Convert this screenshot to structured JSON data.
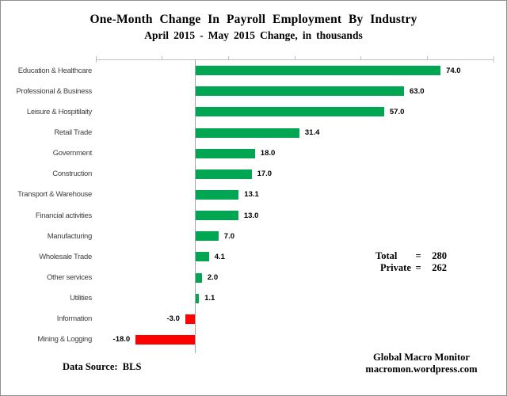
{
  "title": "One-Month Change In Payroll Employment By Industry",
  "subtitle": "April 2015 - May 2015  Change, in thousands",
  "chart_data": {
    "type": "bar",
    "orientation": "horizontal",
    "title": "One-Month Change In Payroll Employment By Industry",
    "subtitle": "April 2015 - May 2015  Change, in thousands",
    "categories": [
      "Education & Healthcare",
      "Professional & Business",
      "Leisure & Hospitilaity",
      "Retail Trade",
      "Government",
      "Construction",
      "Transport & Warehouse",
      "Financial activities",
      "Manufacturing",
      "Wholesale Trade",
      "Other services",
      "Utilities",
      "Information",
      "Mining & Logging"
    ],
    "values": [
      74.0,
      63.0,
      57.0,
      31.4,
      18.0,
      17.0,
      13.1,
      13.0,
      7.0,
      4.1,
      2.0,
      1.1,
      -3.0,
      -18.0
    ],
    "xlabel": "",
    "ylabel": "",
    "xlim": [
      -30,
      90
    ],
    "tick_interval": 20,
    "axis_labels_shown": false,
    "grid": false,
    "legend": "none",
    "colors": {
      "positive_bar": "#00A651",
      "negative_bar": "#FF0000",
      "axis": "#BFBFBF",
      "zero_line": "#A6A6A6",
      "category_label": "#3F3F3F",
      "value_label": "#000000"
    }
  },
  "annotations": {
    "total_label": "Total",
    "total_eq": "=",
    "total_value": "280",
    "private_label": "Private",
    "private_eq": "=",
    "private_value": "262"
  },
  "footer": {
    "source": "Data Source:  BLS",
    "credit_line1": "Global Macro Monitor",
    "credit_line2": "macromon.wordpress.com"
  }
}
